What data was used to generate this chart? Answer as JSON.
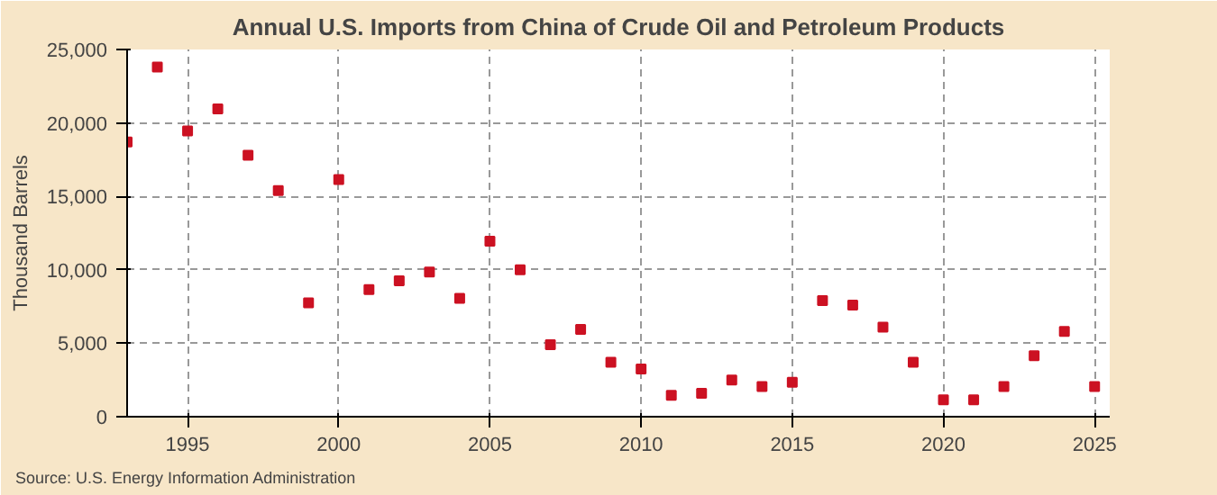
{
  "chart_data": {
    "type": "scatter",
    "title": "Annual U.S. Imports from China of Crude Oil and Petroleum Products",
    "ylabel": "Thousand Barrels",
    "annotations": [
      "Source: U.S. Energy Information Administration"
    ],
    "x": [
      1993,
      1994,
      1995,
      1996,
      1997,
      1998,
      1999,
      2000,
      2001,
      2002,
      2003,
      2004,
      2005,
      2006,
      2007,
      2008,
      2009,
      2010,
      2011,
      2012,
      2013,
      2014,
      2015,
      2016,
      2017,
      2018,
      2019,
      2020,
      2021,
      2022,
      2023,
      2024,
      2025
    ],
    "series": [
      {
        "color": "#cc1122",
        "values": [
          18700,
          23800,
          19450,
          20950,
          17800,
          15400,
          7750,
          16150,
          8650,
          9250,
          9850,
          8050,
          11950,
          10000,
          4900,
          5950,
          3700,
          3250,
          1450,
          1600,
          2500,
          2050,
          2350,
          7900,
          7600,
          6100,
          3700,
          1150,
          1150,
          2050,
          4150,
          5800,
          2050
        ]
      }
    ],
    "xlim": [
      1993,
      2025.5
    ],
    "xticks": [
      1995,
      2000,
      2005,
      2010,
      2015,
      2020,
      2025
    ],
    "ylim": [
      0,
      25000
    ],
    "yticks": [
      {
        "value": 0,
        "label": "0"
      },
      {
        "value": 5000,
        "label": "5,000"
      },
      {
        "value": 10000,
        "label": "10,000"
      },
      {
        "value": 15000,
        "label": "15,000"
      },
      {
        "value": 20000,
        "label": "20,000"
      },
      {
        "value": 25000,
        "label": "25,000"
      }
    ],
    "grid": true,
    "marker": "square"
  }
}
